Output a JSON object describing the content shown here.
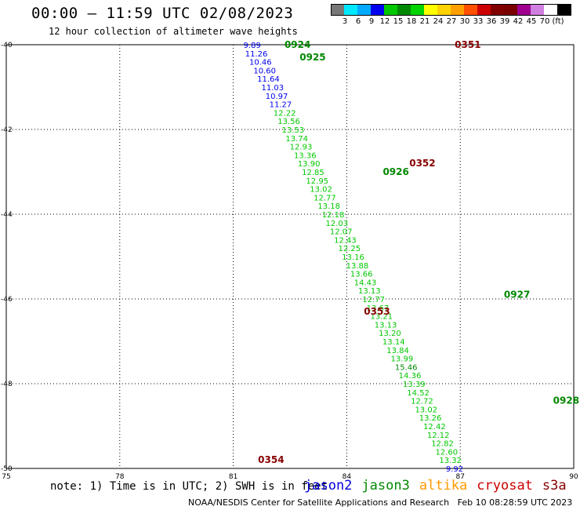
{
  "header": {
    "title": "00:00 – 11:59 UTC 02/08/2023",
    "subtitle": "12 hour collection of altimeter wave heights"
  },
  "colorbar": {
    "colors": [
      "#777777",
      "#00e8ff",
      "#00aaff",
      "#0000ee",
      "#00c800",
      "#008800",
      "#00d400",
      "#ffff00",
      "#ffd200",
      "#ffa000",
      "#ff5000",
      "#cc0000",
      "#800000",
      "#7a0000",
      "#a00090",
      "#d080e0",
      "#ffffff",
      "#000000"
    ],
    "ticks": [
      "3",
      "6",
      "9",
      "12",
      "15",
      "18",
      "21",
      "24",
      "27",
      "30",
      "33",
      "36",
      "39",
      "42",
      "45",
      "70",
      "(ft)"
    ]
  },
  "footer": {
    "note": "note: 1) Time is in UTC; 2) SWH is in feet",
    "credit": "NOAA/NESDIS Center for Satellite Applications and Research   Feb 10 08:28:59 UTC 2023"
  },
  "legend": [
    {
      "name": "jason2",
      "color": "#0000dd"
    },
    {
      "name": "jason3",
      "color": "#008800"
    },
    {
      "name": "altika",
      "color": "#ff9900"
    },
    {
      "name": "cryosat",
      "color": "#cc0000"
    },
    {
      "name": "s3a",
      "color": "#880000"
    }
  ],
  "chart_data": {
    "type": "scatter",
    "title": "00:00 – 11:59 UTC 02/08/2023",
    "subtitle": "12 hour collection of altimeter wave heights",
    "x_ticks": [
      "75",
      "78",
      "81",
      "84",
      "87",
      "90"
    ],
    "y_ticks": [
      "-40",
      "-42",
      "-44",
      "-46",
      "-48",
      "-50"
    ],
    "xlim": [
      75,
      90
    ],
    "ylim": [
      -50,
      -40
    ],
    "grid": true,
    "color_scale": "SWH (ft)",
    "points": [
      {
        "lon": 81.5,
        "lat": -40.0,
        "swh": 9.89
      },
      {
        "lon": 81.61,
        "lat": -40.2,
        "swh": 11.26
      },
      {
        "lon": 81.72,
        "lat": -40.4,
        "swh": 10.46
      },
      {
        "lon": 81.83,
        "lat": -40.6,
        "swh": 10.6
      },
      {
        "lon": 81.93,
        "lat": -40.8,
        "swh": 11.64
      },
      {
        "lon": 82.04,
        "lat": -41.0,
        "swh": 11.03
      },
      {
        "lon": 82.15,
        "lat": -41.2,
        "swh": 10.97
      },
      {
        "lon": 82.25,
        "lat": -41.4,
        "swh": 11.27
      },
      {
        "lon": 82.36,
        "lat": -41.6,
        "swh": 12.22
      },
      {
        "lon": 82.47,
        "lat": -41.8,
        "swh": 13.56
      },
      {
        "lon": 82.58,
        "lat": -42.0,
        "swh": 13.53
      },
      {
        "lon": 82.68,
        "lat": -42.2,
        "swh": 13.74
      },
      {
        "lon": 82.79,
        "lat": -42.4,
        "swh": 12.93
      },
      {
        "lon": 82.9,
        "lat": -42.6,
        "swh": 13.36
      },
      {
        "lon": 83.0,
        "lat": -42.8,
        "swh": 13.9
      },
      {
        "lon": 83.11,
        "lat": -43.0,
        "swh": 12.85
      },
      {
        "lon": 83.22,
        "lat": -43.2,
        "swh": 12.95
      },
      {
        "lon": 83.32,
        "lat": -43.4,
        "swh": 13.02
      },
      {
        "lon": 83.42,
        "lat": -43.6,
        "swh": 12.77
      },
      {
        "lon": 83.53,
        "lat": -43.8,
        "swh": 13.18
      },
      {
        "lon": 83.64,
        "lat": -44.0,
        "swh": 12.18
      },
      {
        "lon": 83.74,
        "lat": -44.2,
        "swh": 12.03
      },
      {
        "lon": 83.85,
        "lat": -44.4,
        "swh": 12.07
      },
      {
        "lon": 83.96,
        "lat": -44.6,
        "swh": 12.43
      },
      {
        "lon": 84.07,
        "lat": -44.8,
        "swh": 12.25
      },
      {
        "lon": 84.17,
        "lat": -45.0,
        "swh": 13.16
      },
      {
        "lon": 84.28,
        "lat": -45.2,
        "swh": 13.88
      },
      {
        "lon": 84.39,
        "lat": -45.4,
        "swh": 13.66
      },
      {
        "lon": 84.49,
        "lat": -45.6,
        "swh": 14.43
      },
      {
        "lon": 84.6,
        "lat": -45.8,
        "swh": 13.13
      },
      {
        "lon": 84.71,
        "lat": -46.0,
        "swh": 12.77
      },
      {
        "lon": 84.82,
        "lat": -46.2,
        "swh": 13.67
      },
      {
        "lon": 84.92,
        "lat": -46.4,
        "swh": 13.21
      },
      {
        "lon": 85.03,
        "lat": -46.6,
        "swh": 13.13
      },
      {
        "lon": 85.14,
        "lat": -46.8,
        "swh": 13.2
      },
      {
        "lon": 85.24,
        "lat": -47.0,
        "swh": 13.14
      },
      {
        "lon": 85.35,
        "lat": -47.2,
        "swh": 13.84
      },
      {
        "lon": 85.46,
        "lat": -47.4,
        "swh": 13.99
      },
      {
        "lon": 85.57,
        "lat": -47.6,
        "swh": 15.46
      },
      {
        "lon": 85.67,
        "lat": -47.8,
        "swh": 14.36
      },
      {
        "lon": 85.78,
        "lat": -48.0,
        "swh": 13.39
      },
      {
        "lon": 85.89,
        "lat": -48.2,
        "swh": 14.52
      },
      {
        "lon": 85.99,
        "lat": -48.4,
        "swh": 12.72
      },
      {
        "lon": 86.1,
        "lat": -48.6,
        "swh": 13.02
      },
      {
        "lon": 86.21,
        "lat": -48.8,
        "swh": 13.26
      },
      {
        "lon": 86.32,
        "lat": -49.0,
        "swh": 12.42
      },
      {
        "lon": 86.42,
        "lat": -49.2,
        "swh": 12.12
      },
      {
        "lon": 86.53,
        "lat": -49.4,
        "swh": 12.82
      },
      {
        "lon": 86.64,
        "lat": -49.6,
        "swh": 12.6
      },
      {
        "lon": 86.74,
        "lat": -49.8,
        "swh": 13.32
      },
      {
        "lon": 86.85,
        "lat": -50.0,
        "swh": 9.92
      }
    ],
    "time_labels": [
      "0924",
      "0925",
      "0351",
      "0352",
      "0926",
      "0927",
      "0353",
      "0354",
      "0928"
    ]
  }
}
